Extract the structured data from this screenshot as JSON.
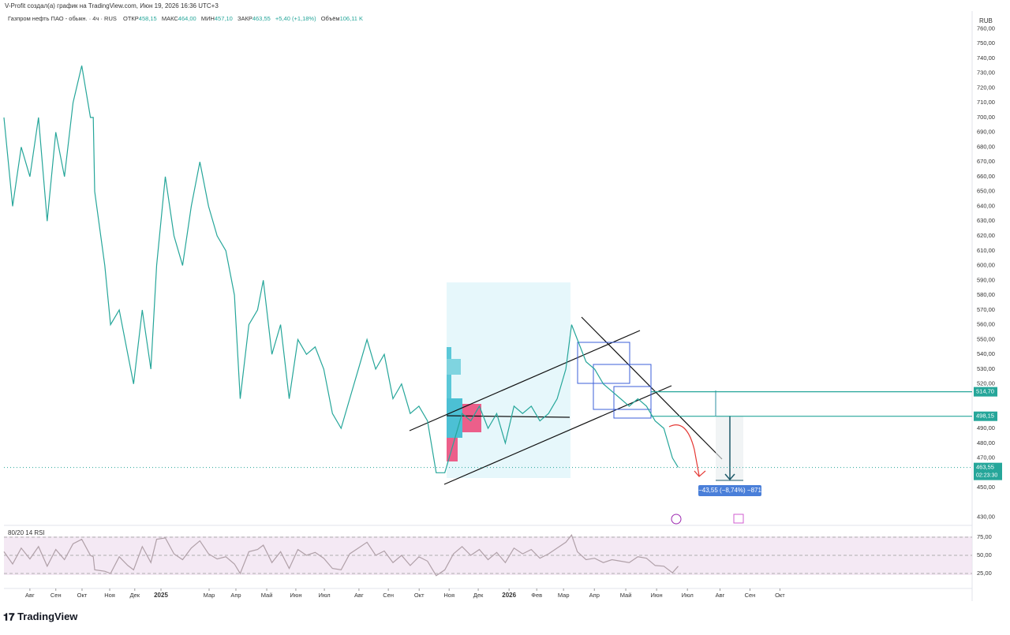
{
  "header": {
    "credit": "V-Profit создал(а) график на TradingView.com, Июн 19, 2026 16:36 UTC+3",
    "symbol": "Газпром нефть ПАО - обыкн. · 4ч · RUS",
    "open_label": "ОТКР",
    "open": "458,15",
    "high_label": "МАКС",
    "high": "464,00",
    "low_label": "МИН",
    "low": "457,10",
    "close_label": "ЗАКР",
    "close": "463,55",
    "change": "+5,40 (+1,18%)",
    "volume_label": "Объём",
    "volume": "106,11 K",
    "currency": "RUB",
    "logo": "TradingView"
  },
  "chart_data": [
    {
      "type": "line",
      "color": "#26a69a",
      "x": [
        -0.9,
        -0.6,
        -0.3,
        0,
        0.3,
        0.6,
        0.9,
        1.2,
        1.5,
        1.8,
        2.1,
        2.2,
        2.25,
        2.6,
        2.8,
        3.1,
        3.4,
        3.6,
        3.9,
        4.2,
        4.4,
        4.7,
        5.0,
        5.3,
        5.6,
        5.9,
        6.2,
        6.5,
        6.8,
        7.1,
        7.3,
        7.6,
        7.9,
        8.1,
        8.4,
        8.7,
        9.0,
        9.3,
        9.6,
        9.9,
        10.2,
        10.5,
        10.8,
        11.1,
        11.4,
        11.7,
        12.0,
        12.3,
        12.6,
        12.9,
        13.2,
        13.5,
        13.8,
        14.1,
        14.4,
        14.7,
        15.0,
        15.3,
        15.6,
        15.9,
        16.2,
        16.5,
        16.8,
        17.1,
        17.4,
        17.7,
        18.0,
        18.3,
        18.6,
        18.8,
        19.0,
        19.3,
        19.6,
        19.9,
        20.2,
        20.5,
        20.8,
        21.1,
        21.4,
        21.7,
        22.0,
        22.3,
        22.5
      ],
      "series": [
        {
          "color": "#26a69a",
          "values": [
            700,
            640,
            680,
            660,
            700,
            630,
            690,
            660,
            710,
            735,
            700,
            700,
            650,
            600,
            560,
            570,
            540,
            520,
            570,
            530,
            600,
            660,
            620,
            600,
            640,
            670,
            640,
            620,
            610,
            580,
            510,
            560,
            570,
            590,
            540,
            560,
            510,
            550,
            540,
            545,
            530,
            500,
            490,
            510,
            530,
            550,
            530,
            540,
            510,
            520,
            500,
            505,
            495,
            460,
            460,
            480,
            500,
            495,
            505,
            490,
            500,
            480,
            505,
            500,
            505,
            495,
            500,
            510,
            530,
            560,
            550,
            535,
            530,
            520,
            515,
            510,
            505,
            510,
            505,
            495,
            490,
            470,
            463.55
          ]
        }
      ],
      "xlim": [
        -0.9,
        32.7
      ],
      "ylim": [
        425,
        770
      ],
      "xticks": [
        {
          "value": 0,
          "label": "Авг"
        },
        {
          "value": 0.9,
          "label": "Сен"
        },
        {
          "value": 1.81,
          "label": "Окт"
        },
        {
          "value": 2.77,
          "label": "Ноя"
        },
        {
          "value": 3.64,
          "label": "Дек"
        },
        {
          "value": 4.55,
          "label": "2025"
        },
        {
          "value": 6.22,
          "label": "Мар"
        },
        {
          "value": 7.15,
          "label": "Апр"
        },
        {
          "value": 8.22,
          "label": "Май"
        },
        {
          "value": 9.23,
          "label": "Июн"
        },
        {
          "value": 10.22,
          "label": "Июл"
        },
        {
          "value": 11.42,
          "label": "Авг"
        },
        {
          "value": 12.44,
          "label": "Сен"
        },
        {
          "value": 13.51,
          "label": "Окт"
        },
        {
          "value": 14.55,
          "label": "Ноя"
        },
        {
          "value": 15.56,
          "label": "Дек"
        },
        {
          "value": 16.63,
          "label": "2026"
        },
        {
          "value": 17.59,
          "label": "Фев"
        },
        {
          "value": 18.52,
          "label": "Мар"
        },
        {
          "value": 19.59,
          "label": "Апр"
        },
        {
          "value": 20.68,
          "label": "Май"
        },
        {
          "value": 21.75,
          "label": "Июн"
        },
        {
          "value": 22.82,
          "label": "Июл"
        },
        {
          "value": 23.95,
          "label": "Авг"
        },
        {
          "value": 24.99,
          "label": "Сен"
        },
        {
          "value": 26.03,
          "label": "Окт"
        }
      ],
      "yticks": [
        {
          "value": 760,
          "label": "760,00"
        },
        {
          "value": 750,
          "label": "750,00"
        },
        {
          "value": 740,
          "label": "740,00"
        },
        {
          "value": 730,
          "label": "730,00"
        },
        {
          "value": 720,
          "label": "720,00"
        },
        {
          "value": 710,
          "label": "710,00"
        },
        {
          "value": 700,
          "label": "700,00"
        },
        {
          "value": 690,
          "label": "690,00"
        },
        {
          "value": 680,
          "label": "680,00"
        },
        {
          "value": 670,
          "label": "670,00"
        },
        {
          "value": 660,
          "label": "660,00"
        },
        {
          "value": 650,
          "label": "650,00"
        },
        {
          "value": 640,
          "label": "640,00"
        },
        {
          "value": 630,
          "label": "630,00"
        },
        {
          "value": 620,
          "label": "620,00"
        },
        {
          "value": 610,
          "label": "610,00"
        },
        {
          "value": 600,
          "label": "600,00"
        },
        {
          "value": 590,
          "label": "590,00"
        },
        {
          "value": 580,
          "label": "580,00"
        },
        {
          "value": 570,
          "label": "570,00"
        },
        {
          "value": 560,
          "label": "560,00"
        },
        {
          "value": 550,
          "label": "550,00"
        },
        {
          "value": 540,
          "label": "540,00"
        },
        {
          "value": 530,
          "label": "530,00"
        },
        {
          "value": 520,
          "label": "520,00"
        },
        {
          "value": 490,
          "label": "490,00"
        },
        {
          "value": 480,
          "label": "480,00"
        },
        {
          "value": 470,
          "label": "470,00"
        },
        {
          "value": 450,
          "label": "450,00"
        },
        {
          "value": 430,
          "label": "430,00"
        }
      ],
      "levels": [
        {
          "value": 514.7,
          "label": "514,70",
          "color": "#26a69a"
        },
        {
          "value": 498.15,
          "label": "498,15",
          "color": "#26a69a"
        }
      ],
      "last_price": {
        "value": 463.55,
        "label": "463,55",
        "countdown": "02:23:30"
      },
      "measure_label": "−43,55 (−8,74%) −871"
    },
    {
      "type": "line",
      "title": "80/20 14 RSI",
      "color": "#b0a0a8",
      "xlim": [
        -0.9,
        32.7
      ],
      "ylim": [
        5,
        89
      ],
      "yticks": [
        {
          "value": 75,
          "label": "75,00"
        },
        {
          "value": 50,
          "label": "50,00"
        },
        {
          "value": 25,
          "label": "25,00"
        }
      ],
      "x": [
        -0.9,
        -0.6,
        -0.3,
        0,
        0.3,
        0.6,
        0.9,
        1.2,
        1.5,
        1.8,
        2.1,
        2.2,
        2.25,
        2.6,
        2.8,
        3.1,
        3.4,
        3.6,
        3.9,
        4.2,
        4.4,
        4.7,
        5.0,
        5.3,
        5.6,
        5.9,
        6.2,
        6.5,
        6.8,
        7.1,
        7.3,
        7.6,
        7.9,
        8.1,
        8.4,
        8.7,
        9.0,
        9.3,
        9.6,
        9.9,
        10.2,
        10.5,
        10.8,
        11.1,
        11.4,
        11.7,
        12.0,
        12.3,
        12.6,
        12.9,
        13.2,
        13.5,
        13.8,
        14.1,
        14.4,
        14.7,
        15.0,
        15.3,
        15.6,
        15.9,
        16.2,
        16.5,
        16.8,
        17.1,
        17.4,
        17.7,
        18.0,
        18.3,
        18.6,
        18.8,
        19.0,
        19.3,
        19.6,
        19.9,
        20.2,
        20.5,
        20.8,
        21.1,
        21.4,
        21.7,
        22.0,
        22.3,
        22.5
      ],
      "series": [
        {
          "color": "#b0a0a8",
          "values": [
            55,
            38,
            60,
            45,
            62,
            35,
            58,
            44,
            66,
            72,
            50,
            48,
            30,
            28,
            25,
            48,
            36,
            30,
            62,
            40,
            72,
            74,
            52,
            44,
            60,
            70,
            52,
            45,
            48,
            38,
            25,
            55,
            58,
            64,
            40,
            55,
            32,
            58,
            50,
            54,
            46,
            32,
            30,
            52,
            60,
            68,
            50,
            56,
            40,
            50,
            36,
            48,
            42,
            22,
            30,
            52,
            62,
            50,
            58,
            44,
            54,
            40,
            60,
            52,
            58,
            46,
            52,
            60,
            68,
            78,
            55,
            44,
            46,
            40,
            44,
            42,
            40,
            48,
            46,
            36,
            35,
            26,
            35
          ]
        }
      ]
    }
  ]
}
